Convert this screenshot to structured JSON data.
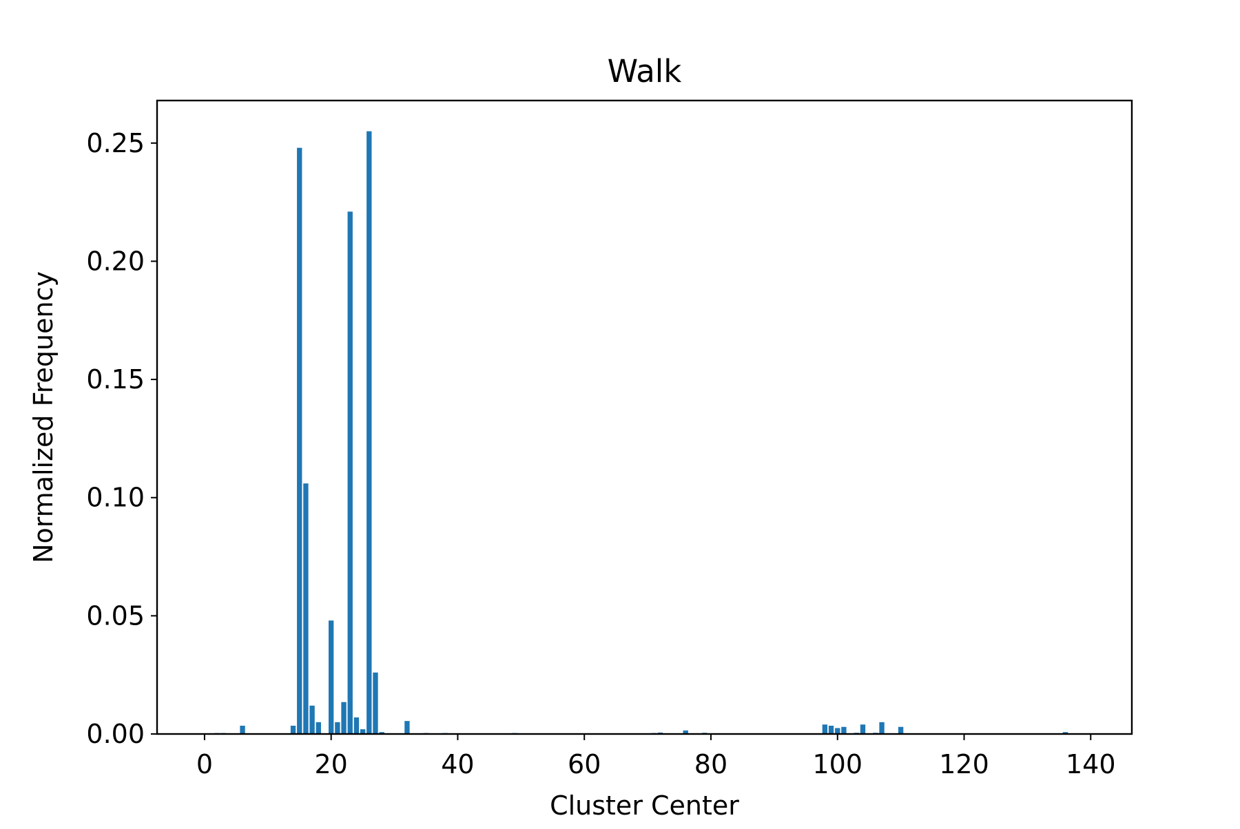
{
  "chart_data": {
    "type": "bar",
    "title": "Walk",
    "xlabel": "Cluster Center",
    "ylabel": "Normalized Frequency",
    "xlim": [
      -7.5,
      146.5
    ],
    "ylim": [
      0,
      0.268
    ],
    "xticks": [
      0,
      20,
      40,
      60,
      80,
      100,
      120,
      140
    ],
    "xtick_labels": [
      "0",
      "20",
      "40",
      "60",
      "80",
      "100",
      "120",
      "140"
    ],
    "yticks": [
      0,
      0.05,
      0.1,
      0.15,
      0.2,
      0.25
    ],
    "ytick_labels": [
      "0.00",
      "0.05",
      "0.10",
      "0.15",
      "0.20",
      "0.25"
    ],
    "grid": false,
    "legend": "none",
    "bar_color": "#1f77b4",
    "bar_width": 0.8,
    "x": [
      2,
      3,
      6,
      14,
      15,
      16,
      17,
      18,
      20,
      21,
      22,
      23,
      24,
      25,
      26,
      27,
      28,
      32,
      35,
      38,
      49,
      71,
      72,
      76,
      79,
      98,
      99,
      100,
      101,
      103,
      104,
      106,
      107,
      110,
      136
    ],
    "values": [
      0.0004,
      0.0004,
      0.0035,
      0.0035,
      0.248,
      0.106,
      0.012,
      0.005,
      0.048,
      0.005,
      0.0135,
      0.221,
      0.007,
      0.002,
      0.255,
      0.026,
      0.0008,
      0.0055,
      0.0004,
      0.0004,
      0.0004,
      0.0004,
      0.0006,
      0.0015,
      0.0005,
      0.004,
      0.0035,
      0.0025,
      0.003,
      0.0005,
      0.004,
      0.0005,
      0.005,
      0.003,
      0.0008
    ]
  }
}
